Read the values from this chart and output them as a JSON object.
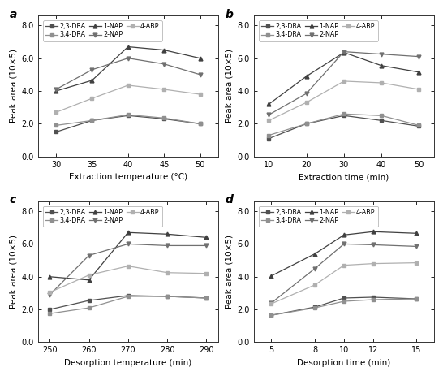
{
  "panels": [
    {
      "label": "a",
      "xlabel": "Extraction temperature (°C)",
      "xticks": [
        30,
        35,
        40,
        45,
        50
      ],
      "xlim": [
        27.5,
        52.5
      ],
      "series": {
        "2,3-DRA": [
          1.5,
          2.2,
          2.5,
          2.3,
          2.0
        ],
        "3,4-DRA": [
          1.9,
          2.2,
          2.55,
          2.35,
          2.0
        ],
        "1-NAP": [
          4.0,
          4.65,
          6.7,
          6.5,
          6.0
        ],
        "2-NAP": [
          4.1,
          5.3,
          6.0,
          5.65,
          5.0
        ],
        "4-ABP": [
          2.7,
          3.55,
          4.35,
          4.1,
          3.8
        ]
      }
    },
    {
      "label": "b",
      "xlabel": "Extraction time (min)",
      "xticks": [
        10,
        20,
        30,
        40,
        50
      ],
      "xlim": [
        6,
        54
      ],
      "series": {
        "2,3-DRA": [
          1.1,
          2.0,
          2.5,
          2.2,
          1.85
        ],
        "3,4-DRA": [
          1.3,
          2.0,
          2.6,
          2.5,
          1.9
        ],
        "1-NAP": [
          3.2,
          4.9,
          6.35,
          5.55,
          5.15
        ],
        "2-NAP": [
          2.55,
          3.85,
          6.4,
          6.25,
          6.1
        ],
        "4-ABP": [
          2.2,
          3.3,
          4.6,
          4.5,
          4.1
        ]
      }
    },
    {
      "label": "c",
      "xlabel": "Desorption temperature (min)",
      "xticks": [
        250,
        260,
        270,
        280,
        290
      ],
      "xlim": [
        247,
        293
      ],
      "series": {
        "2,3-DRA": [
          2.0,
          2.55,
          2.85,
          2.8,
          2.7
        ],
        "3,4-DRA": [
          1.75,
          2.1,
          2.8,
          2.8,
          2.7
        ],
        "1-NAP": [
          4.0,
          3.8,
          6.7,
          6.6,
          6.4
        ],
        "2-NAP": [
          2.9,
          5.3,
          6.0,
          5.9,
          5.9
        ],
        "4-ABP": [
          3.05,
          4.1,
          4.65,
          4.25,
          4.2
        ]
      }
    },
    {
      "label": "d",
      "xlabel": "Desorption time (min)",
      "xticks": [
        5,
        8,
        10,
        12,
        15
      ],
      "xlim": [
        3.8,
        16.2
      ],
      "series": {
        "2,3-DRA": [
          1.65,
          2.15,
          2.7,
          2.75,
          2.65
        ],
        "3,4-DRA": [
          1.65,
          2.1,
          2.5,
          2.6,
          2.65
        ],
        "1-NAP": [
          4.05,
          5.4,
          6.55,
          6.75,
          6.65
        ],
        "2-NAP": [
          2.4,
          4.5,
          6.0,
          5.95,
          5.85
        ],
        "4-ABP": [
          2.35,
          3.5,
          4.7,
          4.8,
          4.85
        ]
      }
    }
  ],
  "ylabel": "Peak area (10×5)",
  "ylim": [
    0.0,
    8.6
  ],
  "yticks": [
    0.0,
    2.0,
    4.0,
    6.0,
    8.0
  ],
  "series_styles": {
    "2,3-DRA": {
      "color": "#505050",
      "marker": "s",
      "linestyle": "-",
      "ms": 3.2
    },
    "3,4-DRA": {
      "color": "#909090",
      "marker": "s",
      "linestyle": "-",
      "ms": 3.2
    },
    "1-NAP": {
      "color": "#404040",
      "marker": "^",
      "linestyle": "-",
      "ms": 3.5
    },
    "2-NAP": {
      "color": "#707070",
      "marker": "v",
      "linestyle": "-",
      "ms": 3.5
    },
    "4-ABP": {
      "color": "#b0b0b0",
      "marker": "s",
      "linestyle": "-",
      "ms": 3.2
    }
  },
  "legend_order": [
    "2,3-DRA",
    "3,4-DRA",
    "1-NAP",
    "2-NAP",
    "4-ABP"
  ],
  "tick_fontsize": 7,
  "axis_label_fontsize": 7.5,
  "legend_fontsize": 5.8,
  "panel_label_fontsize": 10
}
